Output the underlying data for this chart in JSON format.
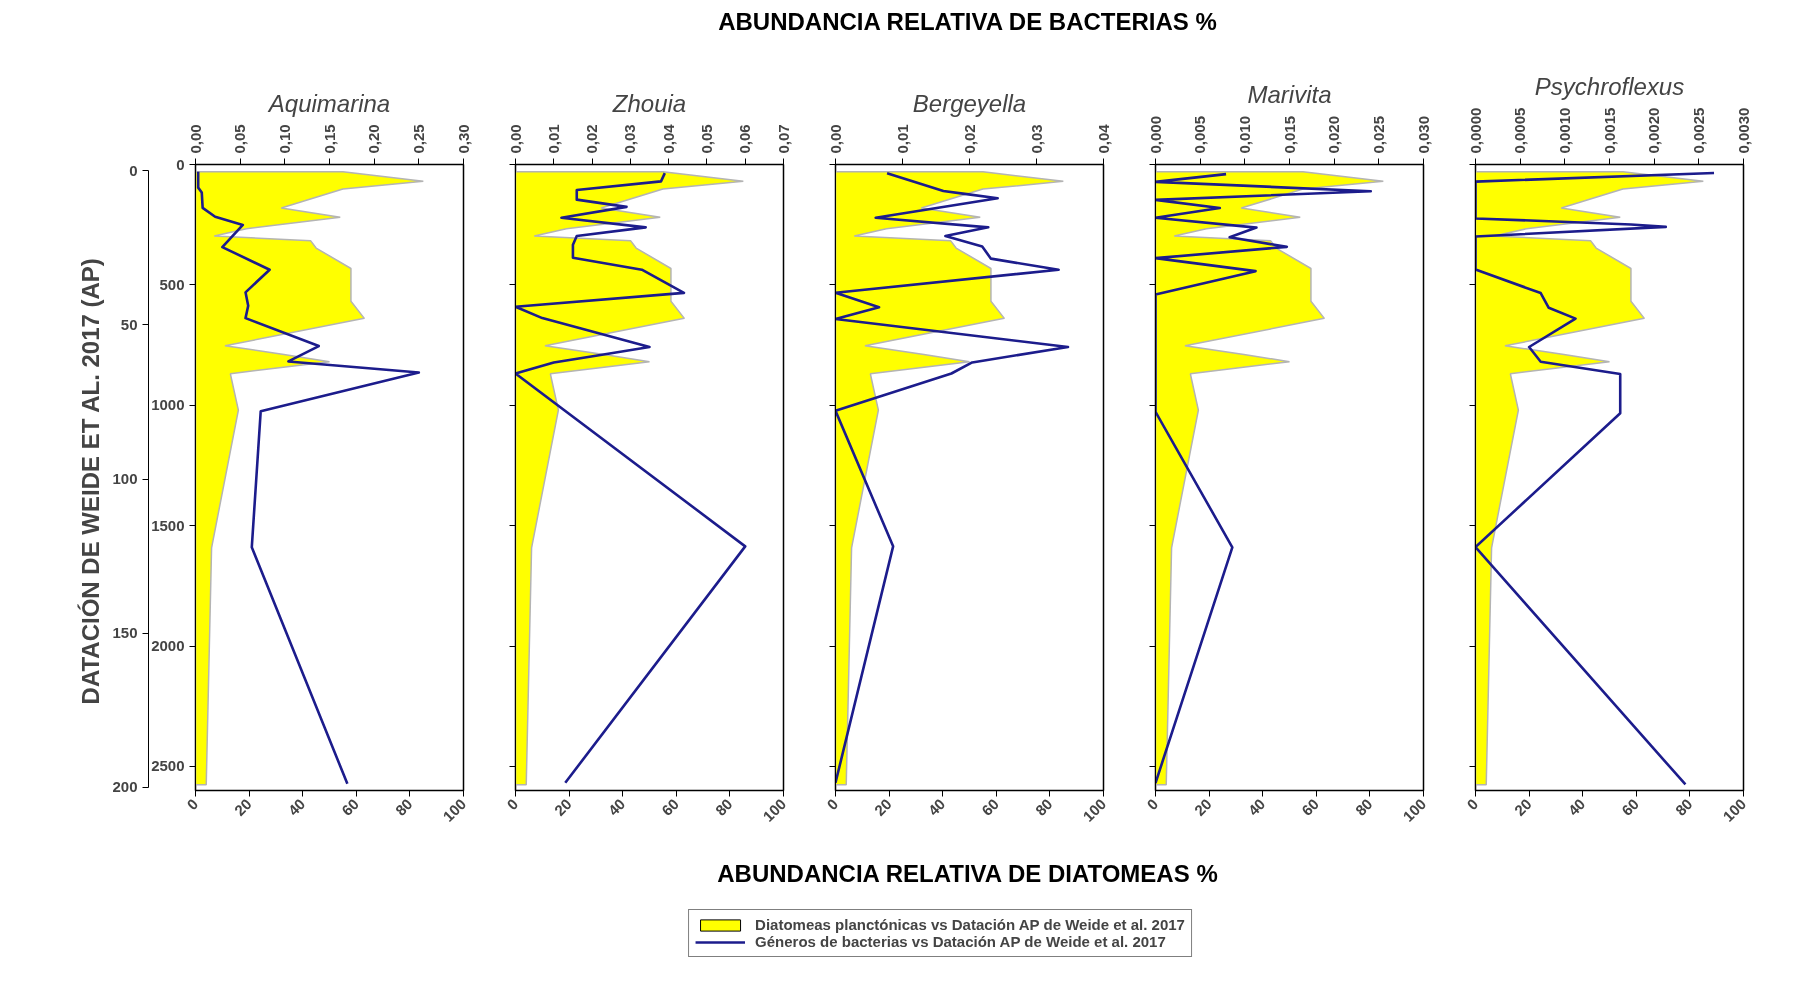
{
  "chart_data": [
    {
      "type": "line",
      "title": "Aquimarina",
      "orientation": "horizontal",
      "y2label": "DATACIÓN DE WEIDE ET AL. 2017  (AP)",
      "ylim": [
        2600,
        0
      ],
      "yticks": [
        0,
        500,
        1000,
        1500,
        2000,
        2500
      ],
      "y2lim": [
        201,
        -2
      ],
      "y2ticks": [
        0,
        50,
        100,
        150,
        200
      ],
      "xlim": [
        0,
        100
      ],
      "xticks": [
        0,
        20,
        40,
        60,
        80,
        100
      ],
      "x2lim": [
        0,
        0.3
      ],
      "x2ticks": [
        {
          "value": 0,
          "label": "0,00"
        },
        {
          "value": 0.05,
          "label": "0,05"
        },
        {
          "value": 0.1,
          "label": "0,10"
        },
        {
          "value": 0.15,
          "label": "0,15"
        },
        {
          "value": 0.2,
          "label": "0,20"
        },
        {
          "value": 0.25,
          "label": "0,25"
        },
        {
          "value": 0.3,
          "label": "0,30"
        }
      ],
      "grid": false,
      "series": [
        {
          "type": "area",
          "color": "#ffff00",
          "x": [
            30,
            70,
            102,
            181,
            219,
            267,
            297,
            317,
            347,
            432,
            568,
            639,
            753,
            789,
            819,
            869,
            1020,
            1592,
            2576
          ],
          "values": [
            55,
            85,
            55,
            32,
            54,
            19,
            7,
            43,
            45,
            58,
            58,
            63,
            11,
            33,
            50,
            13,
            16,
            6,
            4
          ]
        },
        {
          "axis": "x2",
          "color": "#1c1c8c",
          "x": [
            30,
            96,
            116,
            180,
            217,
            251,
            343,
            437,
            531,
            587,
            638,
            754,
            818,
            864,
            1025,
            1590,
            2572
          ],
          "values": [
            0.003,
            0.003,
            0.007,
            0.008,
            0.022,
            0.053,
            0.03,
            0.083,
            0.056,
            0.059,
            0.056,
            0.138,
            0.104,
            0.25,
            0.073,
            0.063,
            0.17
          ]
        }
      ]
    },
    {
      "type": "line",
      "title": "Zhouia",
      "orientation": "horizontal",
      "tick_labels": "x",
      "ylim": [
        2600,
        0
      ],
      "yticks": [
        0,
        500,
        1000,
        1500,
        2000,
        2500
      ],
      "xlim": [
        0,
        100
      ],
      "xticks": [
        0,
        20,
        40,
        60,
        80,
        100
      ],
      "x2lim": [
        0,
        0.07
      ],
      "x2ticks": [
        {
          "value": 0,
          "label": "0,00"
        },
        {
          "value": 0.01,
          "label": "0,01"
        },
        {
          "value": 0.02,
          "label": "0,02"
        },
        {
          "value": 0.03,
          "label": "0,03"
        },
        {
          "value": 0.04,
          "label": "0,04"
        },
        {
          "value": 0.05,
          "label": "0,05"
        },
        {
          "value": 0.06,
          "label": "0,06"
        },
        {
          "value": 0.07,
          "label": "0,07"
        }
      ],
      "grid": false,
      "series": [
        {
          "type": "area",
          "color": "#ffff00",
          "x": [
            30,
            70,
            102,
            181,
            219,
            267,
            297,
            317,
            347,
            432,
            568,
            639,
            753,
            789,
            819,
            869,
            1020,
            1592,
            2576
          ],
          "values": [
            55,
            85,
            55,
            32,
            54,
            19,
            7,
            43,
            45,
            58,
            58,
            63,
            11,
            33,
            50,
            13,
            16,
            6,
            4
          ]
        },
        {
          "axis": "x2",
          "color": "#1c1c8c",
          "x": [
            36,
            70,
            106,
            146,
            176,
            221,
            261,
            297,
            333,
            387,
            437,
            533,
            591,
            638,
            758,
            794,
            822,
            868,
            1586,
            2568
          ],
          "values": [
            0.039,
            0.038,
            0.016,
            0.016,
            0.029,
            0.012,
            0.034,
            0.016,
            0.015,
            0.015,
            0.033,
            0.044,
            0,
            0.007,
            0.035,
            0.021,
            0.01,
            0,
            0.06,
            0.013
          ]
        }
      ]
    },
    {
      "type": "line",
      "title": "Bergeyella",
      "orientation": "horizontal",
      "tick_labels": "x",
      "xlabel": "ABUNDANCIA RELATIVA DE DIATOMEAS %",
      "x2label": "ABUNDANCIA RELATIVA DE BACTERIAS %",
      "legend": "bottom",
      "ylim": [
        2600,
        0
      ],
      "yticks": [
        0,
        500,
        1000,
        1500,
        2000,
        2500
      ],
      "xlim": [
        0,
        100
      ],
      "xticks": [
        0,
        20,
        40,
        60,
        80,
        100
      ],
      "x2lim": [
        0,
        0.04
      ],
      "x2ticks": [
        {
          "value": 0,
          "label": "0,00"
        },
        {
          "value": 0.01,
          "label": "0,01"
        },
        {
          "value": 0.02,
          "label": "0,02"
        },
        {
          "value": 0.03,
          "label": "0,03"
        },
        {
          "value": 0.04,
          "label": "0,04"
        }
      ],
      "grid": false,
      "series": [
        {
          "name": "Diatomeas planctónicas vs Datación AP de Weide et al. 2017",
          "type": "area",
          "color": "#ffff00",
          "x": [
            30,
            70,
            102,
            181,
            219,
            267,
            297,
            317,
            347,
            432,
            568,
            639,
            753,
            789,
            819,
            869,
            1020,
            1592,
            2576
          ],
          "values": [
            55,
            85,
            55,
            32,
            54,
            19,
            7,
            43,
            45,
            58,
            58,
            63,
            11,
            33,
            50,
            13,
            16,
            6,
            4
          ]
        },
        {
          "name": "Géneros de bacterias vs Datación AP de Weide et al. 2017",
          "axis": "x2",
          "color": "#1c1c8c",
          "x": [
            36,
            110,
            122,
            140,
            221,
            261,
            297,
            341,
            391,
            437,
            533,
            593,
            642,
            758,
            822,
            868,
            1023,
            1586,
            2568
          ],
          "values": [
            0.0077,
            0.0161,
            0.0193,
            0.0242,
            0.006,
            0.0228,
            0.0164,
            0.0219,
            0.0232,
            0.0333,
            0,
            0.0065,
            0,
            0.0347,
            0.0204,
            0.0173,
            0,
            0.0086,
            0
          ]
        }
      ]
    },
    {
      "type": "line",
      "title": "Marivita",
      "orientation": "horizontal",
      "tick_labels": "x",
      "ylim": [
        2600,
        0
      ],
      "yticks": [
        0,
        500,
        1000,
        1500,
        2000,
        2500
      ],
      "xlim": [
        0,
        100
      ],
      "xticks": [
        0,
        20,
        40,
        60,
        80,
        100
      ],
      "x2lim": [
        0,
        0.03
      ],
      "x2ticks": [
        {
          "value": 0,
          "label": "0,000"
        },
        {
          "value": 0.005,
          "label": "0,005"
        },
        {
          "value": 0.01,
          "label": "0,010"
        },
        {
          "value": 0.015,
          "label": "0,015"
        },
        {
          "value": 0.02,
          "label": "0,020"
        },
        {
          "value": 0.025,
          "label": "0,025"
        },
        {
          "value": 0.03,
          "label": "0,030"
        }
      ],
      "grid": false,
      "series": [
        {
          "type": "area",
          "color": "#ffff00",
          "x": [
            30,
            70,
            102,
            181,
            219,
            267,
            297,
            317,
            347,
            432,
            568,
            639,
            753,
            789,
            819,
            869,
            1020,
            1592,
            2576
          ],
          "values": [
            55,
            85,
            55,
            32,
            54,
            19,
            7,
            43,
            45,
            58,
            58,
            63,
            11,
            33,
            50,
            13,
            16,
            6,
            4
          ]
        },
        {
          "axis": "x2",
          "color": "#1c1c8c",
          "x": [
            40,
            72,
            111,
            147,
            181,
            221,
            262,
            302,
            342,
            389,
            443,
            540,
            1027,
            1590,
            2569
          ],
          "values": [
            0.0079,
            0,
            0.0241,
            0,
            0.0072,
            0,
            0.0113,
            0.0083,
            0.0147,
            0,
            0.0112,
            0,
            0,
            0.0086,
            0
          ]
        }
      ]
    },
    {
      "type": "line",
      "title": "Psychroflexus",
      "orientation": "horizontal",
      "tick_labels": "x",
      "ylim": [
        2600,
        0
      ],
      "yticks": [
        0,
        500,
        1000,
        1500,
        2000,
        2500
      ],
      "xlim": [
        0,
        100
      ],
      "xticks": [
        0,
        20,
        40,
        60,
        80,
        100
      ],
      "x2lim": [
        0,
        0.003
      ],
      "x2ticks": [
        {
          "value": 0,
          "label": "0,0000"
        },
        {
          "value": 0.0005,
          "label": "0,0005"
        },
        {
          "value": 0.001,
          "label": "0,0010"
        },
        {
          "value": 0.0015,
          "label": "0,0015"
        },
        {
          "value": 0.002,
          "label": "0,0020"
        },
        {
          "value": 0.0025,
          "label": "0,0025"
        },
        {
          "value": 0.003,
          "label": "0,0030"
        }
      ],
      "grid": false,
      "series": [
        {
          "type": "area",
          "color": "#ffff00",
          "x": [
            30,
            70,
            102,
            181,
            219,
            267,
            297,
            317,
            347,
            432,
            568,
            639,
            753,
            789,
            819,
            869,
            1020,
            1592,
            2576
          ],
          "values": [
            55,
            85,
            55,
            32,
            54,
            19,
            7,
            43,
            45,
            58,
            58,
            63,
            11,
            33,
            50,
            13,
            16,
            6,
            4
          ]
        },
        {
          "axis": "x2",
          "color": "#1c1c8c",
          "x": [
            35,
            71,
            224,
            249,
            259,
            299,
            436,
            534,
            595,
            640,
            758,
            819,
            870,
            1033,
            1589,
            2575
          ],
          "values": [
            0.00267,
            0,
            0,
            0.00174,
            0.00213,
            0,
            0,
            0.00073,
            0.00082,
            0.00112,
            0.0006,
            0.00073,
            0.00162,
            0.00162,
            0,
            0.00235
          ]
        }
      ]
    }
  ]
}
